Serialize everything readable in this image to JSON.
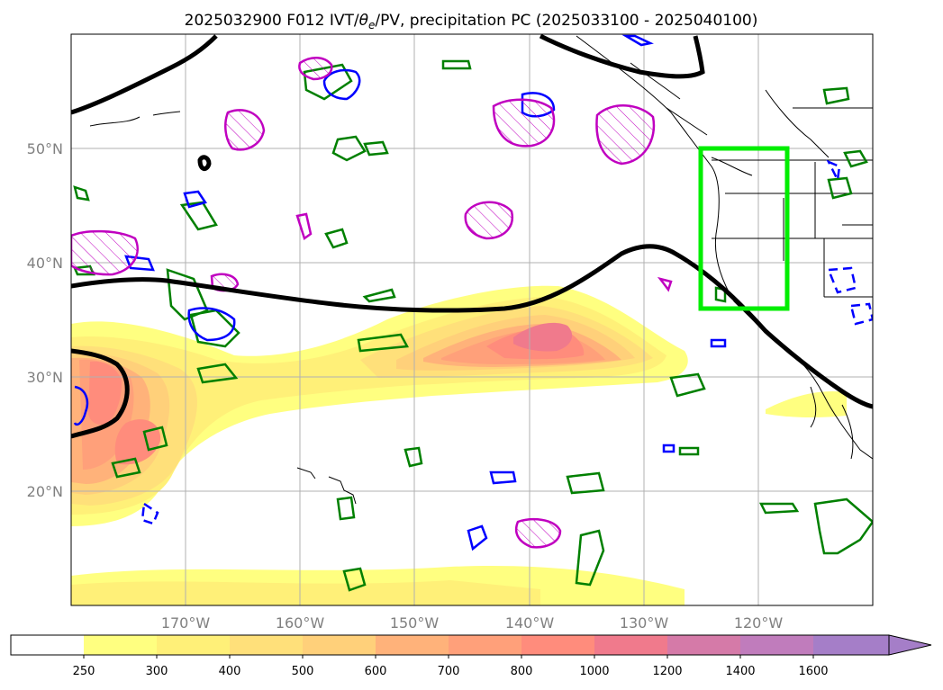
{
  "title_main": "2025032900 F012 IVT/",
  "title_theta": "θ",
  "title_sub": "e",
  "title_tail": "/PV, precipitation PC (2025033100 - 2025040100)",
  "map": {
    "lon_range": [
      -180,
      -110
    ],
    "lat_range": [
      10,
      60
    ],
    "lon_ticks": [
      {
        "value": -170,
        "label": "170°W"
      },
      {
        "value": -160,
        "label": "160°W"
      },
      {
        "value": -150,
        "label": "150°W"
      },
      {
        "value": -140,
        "label": "140°W"
      },
      {
        "value": -130,
        "label": "130°W"
      },
      {
        "value": -120,
        "label": "120°W"
      }
    ],
    "lat_ticks": [
      {
        "value": 20,
        "label": "20°N"
      },
      {
        "value": 30,
        "label": "30°N"
      },
      {
        "value": 40,
        "label": "40°N"
      },
      {
        "value": 50,
        "label": "50°N"
      }
    ],
    "highlight_box": {
      "lon": [
        -125,
        -117.5
      ],
      "lat": [
        36,
        50
      ],
      "color": "#00ee00"
    }
  },
  "colorbar": {
    "levels": [
      "250",
      "300",
      "400",
      "500",
      "600",
      "700",
      "800",
      "1000",
      "1200",
      "1400",
      "1600"
    ],
    "colors": [
      "#ffffff",
      "#ffff80",
      "#fff078",
      "#ffe07a",
      "#ffd07a",
      "#ffb27a",
      "#ffa07a",
      "#ff8c7c",
      "#f07a8c",
      "#d57aa8",
      "#c07cbc",
      "#a57ec8"
    ]
  },
  "colors": {
    "contour_black": "#000000",
    "contour_green": "#008000",
    "contour_blue": "#0000ff",
    "contour_magenta": "#c000c0",
    "gridline": "#b0b0b0"
  }
}
